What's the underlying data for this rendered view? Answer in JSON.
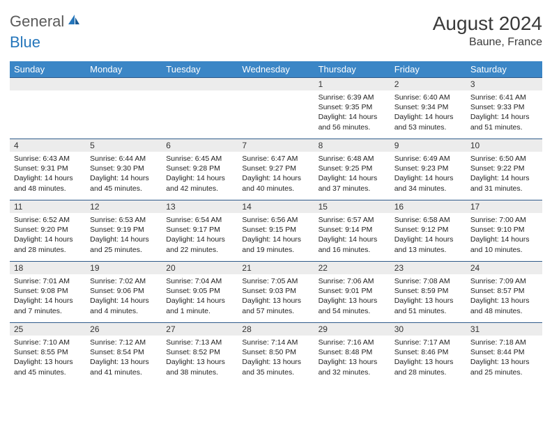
{
  "brand": {
    "part1": "General",
    "part2": "Blue",
    "color_general": "#5a5a5a",
    "color_blue": "#2576bb"
  },
  "title": "August 2024",
  "location": "Baune, France",
  "colors": {
    "header_bg": "#3b86c6",
    "header_text": "#ffffff",
    "daynum_bg": "#ececec",
    "row_border": "#2e5a8a",
    "body_text": "#222222",
    "page_bg": "#ffffff"
  },
  "day_headers": [
    "Sunday",
    "Monday",
    "Tuesday",
    "Wednesday",
    "Thursday",
    "Friday",
    "Saturday"
  ],
  "weeks": [
    [
      {
        "n": "",
        "sunrise": "",
        "sunset": "",
        "daylight": ""
      },
      {
        "n": "",
        "sunrise": "",
        "sunset": "",
        "daylight": ""
      },
      {
        "n": "",
        "sunrise": "",
        "sunset": "",
        "daylight": ""
      },
      {
        "n": "",
        "sunrise": "",
        "sunset": "",
        "daylight": ""
      },
      {
        "n": "1",
        "sunrise": "Sunrise: 6:39 AM",
        "sunset": "Sunset: 9:35 PM",
        "daylight": "Daylight: 14 hours and 56 minutes."
      },
      {
        "n": "2",
        "sunrise": "Sunrise: 6:40 AM",
        "sunset": "Sunset: 9:34 PM",
        "daylight": "Daylight: 14 hours and 53 minutes."
      },
      {
        "n": "3",
        "sunrise": "Sunrise: 6:41 AM",
        "sunset": "Sunset: 9:33 PM",
        "daylight": "Daylight: 14 hours and 51 minutes."
      }
    ],
    [
      {
        "n": "4",
        "sunrise": "Sunrise: 6:43 AM",
        "sunset": "Sunset: 9:31 PM",
        "daylight": "Daylight: 14 hours and 48 minutes."
      },
      {
        "n": "5",
        "sunrise": "Sunrise: 6:44 AM",
        "sunset": "Sunset: 9:30 PM",
        "daylight": "Daylight: 14 hours and 45 minutes."
      },
      {
        "n": "6",
        "sunrise": "Sunrise: 6:45 AM",
        "sunset": "Sunset: 9:28 PM",
        "daylight": "Daylight: 14 hours and 42 minutes."
      },
      {
        "n": "7",
        "sunrise": "Sunrise: 6:47 AM",
        "sunset": "Sunset: 9:27 PM",
        "daylight": "Daylight: 14 hours and 40 minutes."
      },
      {
        "n": "8",
        "sunrise": "Sunrise: 6:48 AM",
        "sunset": "Sunset: 9:25 PM",
        "daylight": "Daylight: 14 hours and 37 minutes."
      },
      {
        "n": "9",
        "sunrise": "Sunrise: 6:49 AM",
        "sunset": "Sunset: 9:23 PM",
        "daylight": "Daylight: 14 hours and 34 minutes."
      },
      {
        "n": "10",
        "sunrise": "Sunrise: 6:50 AM",
        "sunset": "Sunset: 9:22 PM",
        "daylight": "Daylight: 14 hours and 31 minutes."
      }
    ],
    [
      {
        "n": "11",
        "sunrise": "Sunrise: 6:52 AM",
        "sunset": "Sunset: 9:20 PM",
        "daylight": "Daylight: 14 hours and 28 minutes."
      },
      {
        "n": "12",
        "sunrise": "Sunrise: 6:53 AM",
        "sunset": "Sunset: 9:19 PM",
        "daylight": "Daylight: 14 hours and 25 minutes."
      },
      {
        "n": "13",
        "sunrise": "Sunrise: 6:54 AM",
        "sunset": "Sunset: 9:17 PM",
        "daylight": "Daylight: 14 hours and 22 minutes."
      },
      {
        "n": "14",
        "sunrise": "Sunrise: 6:56 AM",
        "sunset": "Sunset: 9:15 PM",
        "daylight": "Daylight: 14 hours and 19 minutes."
      },
      {
        "n": "15",
        "sunrise": "Sunrise: 6:57 AM",
        "sunset": "Sunset: 9:14 PM",
        "daylight": "Daylight: 14 hours and 16 minutes."
      },
      {
        "n": "16",
        "sunrise": "Sunrise: 6:58 AM",
        "sunset": "Sunset: 9:12 PM",
        "daylight": "Daylight: 14 hours and 13 minutes."
      },
      {
        "n": "17",
        "sunrise": "Sunrise: 7:00 AM",
        "sunset": "Sunset: 9:10 PM",
        "daylight": "Daylight: 14 hours and 10 minutes."
      }
    ],
    [
      {
        "n": "18",
        "sunrise": "Sunrise: 7:01 AM",
        "sunset": "Sunset: 9:08 PM",
        "daylight": "Daylight: 14 hours and 7 minutes."
      },
      {
        "n": "19",
        "sunrise": "Sunrise: 7:02 AM",
        "sunset": "Sunset: 9:06 PM",
        "daylight": "Daylight: 14 hours and 4 minutes."
      },
      {
        "n": "20",
        "sunrise": "Sunrise: 7:04 AM",
        "sunset": "Sunset: 9:05 PM",
        "daylight": "Daylight: 14 hours and 1 minute."
      },
      {
        "n": "21",
        "sunrise": "Sunrise: 7:05 AM",
        "sunset": "Sunset: 9:03 PM",
        "daylight": "Daylight: 13 hours and 57 minutes."
      },
      {
        "n": "22",
        "sunrise": "Sunrise: 7:06 AM",
        "sunset": "Sunset: 9:01 PM",
        "daylight": "Daylight: 13 hours and 54 minutes."
      },
      {
        "n": "23",
        "sunrise": "Sunrise: 7:08 AM",
        "sunset": "Sunset: 8:59 PM",
        "daylight": "Daylight: 13 hours and 51 minutes."
      },
      {
        "n": "24",
        "sunrise": "Sunrise: 7:09 AM",
        "sunset": "Sunset: 8:57 PM",
        "daylight": "Daylight: 13 hours and 48 minutes."
      }
    ],
    [
      {
        "n": "25",
        "sunrise": "Sunrise: 7:10 AM",
        "sunset": "Sunset: 8:55 PM",
        "daylight": "Daylight: 13 hours and 45 minutes."
      },
      {
        "n": "26",
        "sunrise": "Sunrise: 7:12 AM",
        "sunset": "Sunset: 8:54 PM",
        "daylight": "Daylight: 13 hours and 41 minutes."
      },
      {
        "n": "27",
        "sunrise": "Sunrise: 7:13 AM",
        "sunset": "Sunset: 8:52 PM",
        "daylight": "Daylight: 13 hours and 38 minutes."
      },
      {
        "n": "28",
        "sunrise": "Sunrise: 7:14 AM",
        "sunset": "Sunset: 8:50 PM",
        "daylight": "Daylight: 13 hours and 35 minutes."
      },
      {
        "n": "29",
        "sunrise": "Sunrise: 7:16 AM",
        "sunset": "Sunset: 8:48 PM",
        "daylight": "Daylight: 13 hours and 32 minutes."
      },
      {
        "n": "30",
        "sunrise": "Sunrise: 7:17 AM",
        "sunset": "Sunset: 8:46 PM",
        "daylight": "Daylight: 13 hours and 28 minutes."
      },
      {
        "n": "31",
        "sunrise": "Sunrise: 7:18 AM",
        "sunset": "Sunset: 8:44 PM",
        "daylight": "Daylight: 13 hours and 25 minutes."
      }
    ]
  ]
}
